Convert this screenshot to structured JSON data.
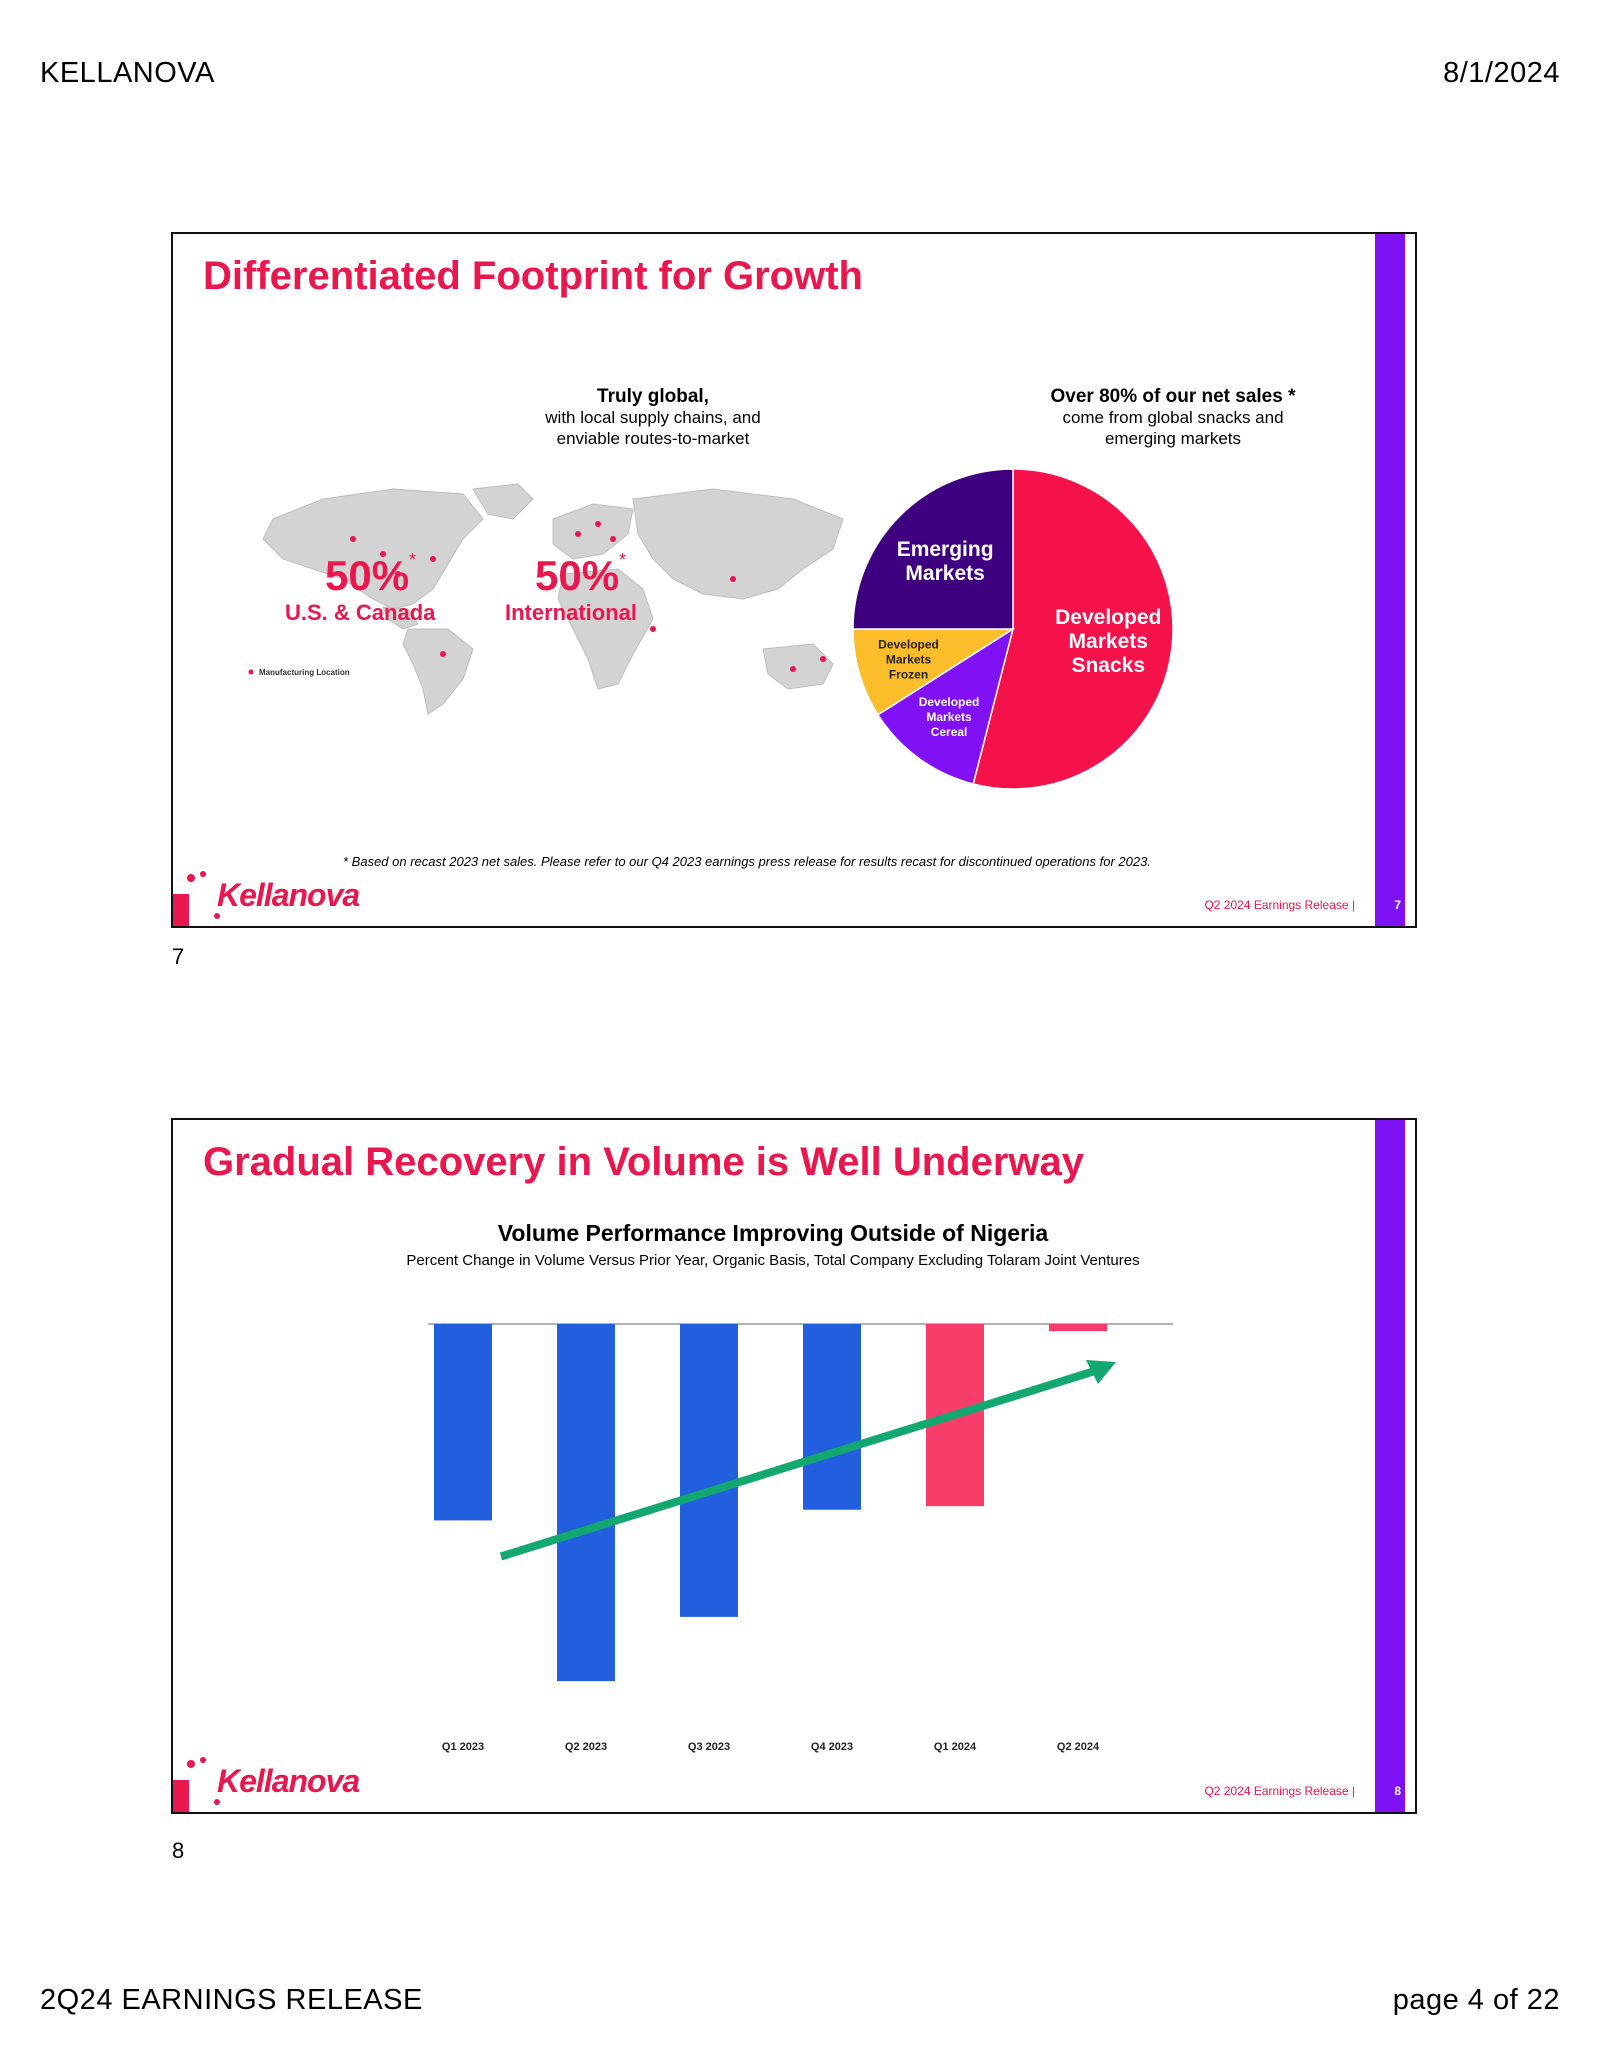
{
  "header": {
    "company": "KELLANOVA",
    "date": "8/1/2024"
  },
  "footer": {
    "left": "2Q24 EARNINGS RELEASE",
    "right": "page 4 of 22"
  },
  "slide7": {
    "title": "Differentiated Footprint for Growth",
    "left_heading": "Truly global,",
    "left_sub1": "with local supply chains, and",
    "left_sub2": "enviable routes-to-market",
    "right_heading": "Over 80% of our net sales *",
    "right_sub1": "come from global snacks and",
    "right_sub2": "emerging markets",
    "us_pct": "50%",
    "us_label": "U.S. & Canada",
    "intl_pct": "50%",
    "intl_label": "International",
    "star": "*",
    "legend": "Manufacturing Location",
    "footnote": "* Based on recast 2023 net sales.  Please refer to our Q4 2023 earnings press release for results recast for discontinued operations for 2023.",
    "logo": "Kellanova",
    "release": "Q2 2024 Earnings Release |",
    "page": "7",
    "below_num": "7",
    "colors": {
      "accent": "#e8174d",
      "bar": "#7f12f5"
    }
  },
  "slide8": {
    "title": "Gradual Recovery in Volume is Well Underway",
    "logo": "Kellanova",
    "release": "Q2 2024 Earnings Release |",
    "page": "8",
    "below_num": "8"
  },
  "chart_data": [
    {
      "type": "pie",
      "slices": [
        {
          "label": "Developed Markets Snacks",
          "value": 54,
          "color": "#f5124a"
        },
        {
          "label": "Developed Markets Cereal",
          "value": 12,
          "color": "#8011f5"
        },
        {
          "label": "Developed Markets Frozen",
          "value": 9,
          "color": "#fbbd2a"
        },
        {
          "label": "Emerging Markets",
          "value": 25,
          "color": "#3f0080"
        }
      ]
    },
    {
      "type": "bar",
      "title": "Volume Performance Improving Outside of Nigeria",
      "subtitle": "Percent Change in Volume Versus Prior Year, Organic Basis, Total Company Excluding Tolaram Joint Ventures",
      "categories": [
        "Q1 2023",
        "Q2 2023",
        "Q3 2023",
        "Q4 2023",
        "Q1 2024",
        "Q2 2024"
      ],
      "values": [
        -5.5,
        -10.0,
        -8.2,
        -5.2,
        -5.1,
        -0.2
      ],
      "colors": [
        "#215fde",
        "#215fde",
        "#215fde",
        "#215fde",
        "#f73d6a",
        "#f73d6a"
      ],
      "ylim": [
        -10.5,
        0
      ],
      "trend_color": "#13a870"
    }
  ]
}
